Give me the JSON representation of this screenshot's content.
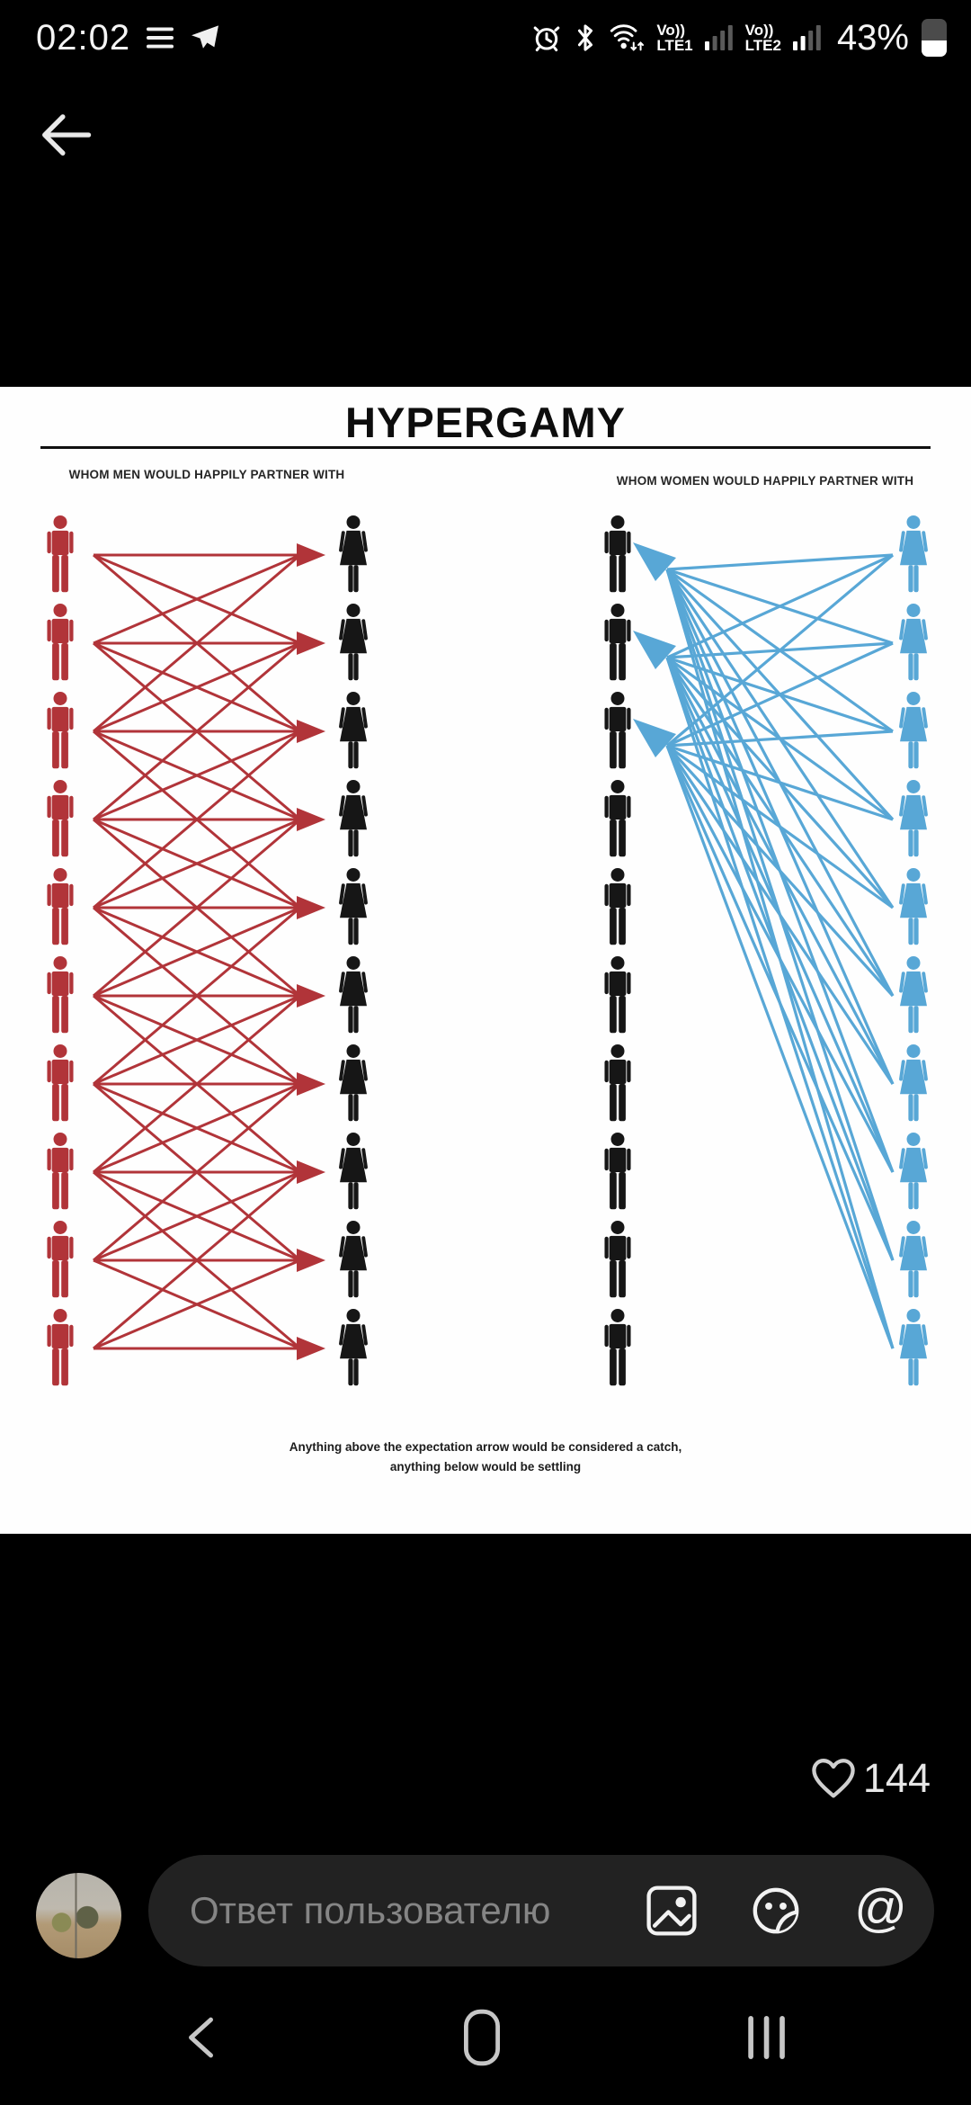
{
  "status_bar": {
    "time": "02:02",
    "battery": "43%",
    "battery_level": 0.43,
    "notification_icons": [
      "list-notification",
      "telegram-message"
    ],
    "sim1": {
      "volte": "Vo))",
      "net": "LTE1",
      "bars": 1,
      "bars_total": 4
    },
    "sim2": {
      "volte": "Vo))",
      "net": "LTE2",
      "bars": 2,
      "bars_total": 4
    }
  },
  "meme": {
    "title": "HYPERGAMY",
    "caption": [
      "Anything above the expectation arrow would be considered a catch,",
      "anything below would be settling"
    ]
  },
  "diagram": {
    "rows": 10,
    "left": {
      "label": "WHOM MEN WOULD HAPPILY PARTNER WITH",
      "source_figure": "man",
      "target_figure": "woman",
      "source_color": "#b13439",
      "target_color": "#161616",
      "arrow_color": "#b13439",
      "spread": 2,
      "description": "each man points to every woman within 2 ranks of his own"
    },
    "right": {
      "label": "WHOM WOMEN WOULD HAPPILY PARTNER WITH",
      "source_figure": "woman",
      "target_figure": "man",
      "source_color": "#58a7d6",
      "target_color": "#161616",
      "arrow_color": "#58a7d6",
      "targets": [
        1,
        2,
        3
      ],
      "description": "every woman points only to the top three men"
    }
  },
  "engagement": {
    "likes": "144",
    "like_icon": "heart-outline"
  },
  "composer": {
    "placeholder": "Ответ пользователю"
  },
  "colors": {
    "status_icons": "#ffffff",
    "nav_icons": "#c6c6c6",
    "likes": "#e6e6e6",
    "pill_bg": "#222222"
  }
}
